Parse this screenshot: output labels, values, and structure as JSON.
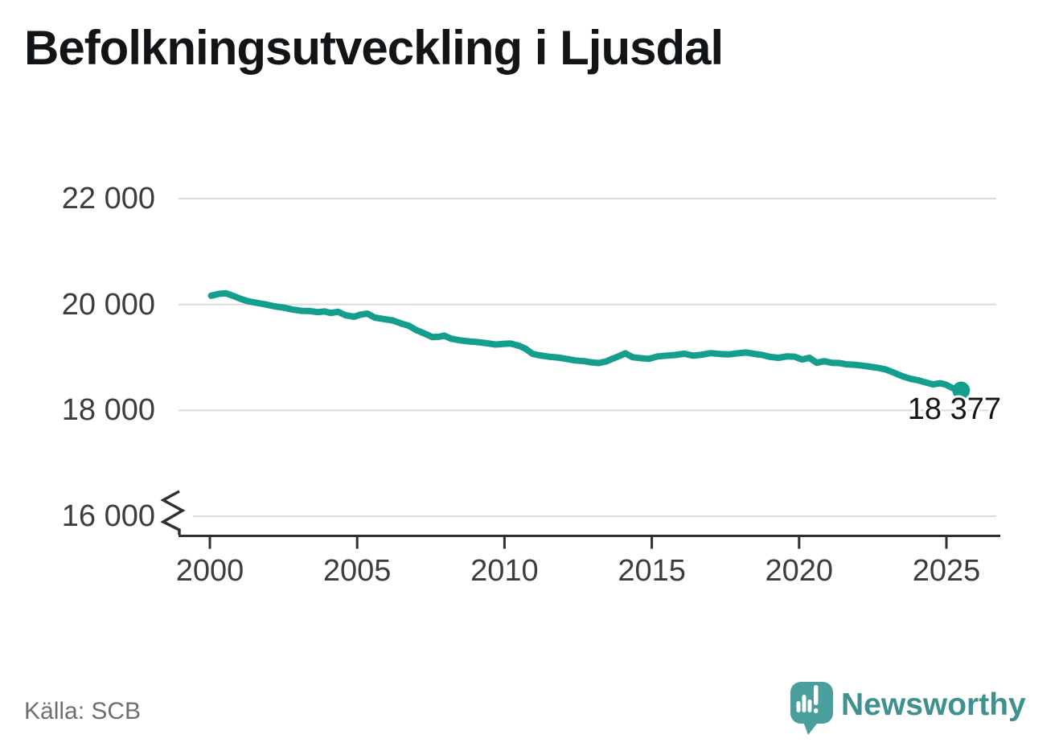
{
  "title": "Befolkningsutveckling i Ljusdal",
  "source": "Källa: SCB",
  "branding": {
    "name": "Newsworthy",
    "logo_icon": "speech-bubble-bar-chart-icon"
  },
  "colors": {
    "line": "#149E8D",
    "grid": "#DBDBDB",
    "axis": "#303030",
    "tick_text": "#3D3D3D",
    "title_text": "#121517",
    "source_text": "#6F6F6F",
    "end_label_text": "#161616",
    "logo_teal": "#4A9E9B",
    "wordmark_teal": "#3E918F"
  },
  "chart_data": {
    "type": "line",
    "title": "Befolkningsutveckling i Ljusdal",
    "xlabel": "",
    "ylabel": "",
    "grid": true,
    "legend": false,
    "y_axis_break": true,
    "ylim": [
      16000,
      22000
    ],
    "x_range": [
      2000,
      2025.5
    ],
    "end_label": "18 377",
    "end_value": 18377,
    "x_ticks": [
      {
        "value": 2000,
        "label": "2000"
      },
      {
        "value": 2005,
        "label": "2005"
      },
      {
        "value": 2010,
        "label": "2010"
      },
      {
        "value": 2015,
        "label": "2015"
      },
      {
        "value": 2020,
        "label": "2020"
      },
      {
        "value": 2025,
        "label": "2025"
      }
    ],
    "y_ticks": [
      {
        "value": 22000,
        "label": "22 000"
      },
      {
        "value": 20000,
        "label": "20 000"
      },
      {
        "value": 18000,
        "label": "18 000"
      },
      {
        "value": 16000,
        "label": "16 000"
      }
    ],
    "points": [
      [
        2000.04,
        20165
      ],
      [
        2000.3,
        20200
      ],
      [
        2000.55,
        20210
      ],
      [
        2000.8,
        20160
      ],
      [
        2001.05,
        20105
      ],
      [
        2001.3,
        20060
      ],
      [
        2001.6,
        20030
      ],
      [
        2001.9,
        20000
      ],
      [
        2002.2,
        19965
      ],
      [
        2002.5,
        19940
      ],
      [
        2002.8,
        19905
      ],
      [
        2003.1,
        19880
      ],
      [
        2003.4,
        19875
      ],
      [
        2003.65,
        19855
      ],
      [
        2003.9,
        19868
      ],
      [
        2004.1,
        19838
      ],
      [
        2004.35,
        19862
      ],
      [
        2004.6,
        19798
      ],
      [
        2004.9,
        19768
      ],
      [
        2005.1,
        19806
      ],
      [
        2005.35,
        19826
      ],
      [
        2005.6,
        19752
      ],
      [
        2005.9,
        19724
      ],
      [
        2006.2,
        19698
      ],
      [
        2006.5,
        19640
      ],
      [
        2006.75,
        19598
      ],
      [
        2007.0,
        19518
      ],
      [
        2007.3,
        19448
      ],
      [
        2007.55,
        19383
      ],
      [
        2007.8,
        19392
      ],
      [
        2007.95,
        19412
      ],
      [
        2008.2,
        19352
      ],
      [
        2008.5,
        19322
      ],
      [
        2008.8,
        19302
      ],
      [
        2009.1,
        19288
      ],
      [
        2009.4,
        19268
      ],
      [
        2009.7,
        19243
      ],
      [
        2009.95,
        19253
      ],
      [
        2010.2,
        19263
      ],
      [
        2010.5,
        19218
      ],
      [
        2010.7,
        19168
      ],
      [
        2010.95,
        19068
      ],
      [
        2011.2,
        19038
      ],
      [
        2011.5,
        19013
      ],
      [
        2011.8,
        18998
      ],
      [
        2012.1,
        18973
      ],
      [
        2012.4,
        18943
      ],
      [
        2012.7,
        18928
      ],
      [
        2013.0,
        18903
      ],
      [
        2013.2,
        18893
      ],
      [
        2013.45,
        18923
      ],
      [
        2013.7,
        18983
      ],
      [
        2013.95,
        19038
      ],
      [
        2014.1,
        19078
      ],
      [
        2014.35,
        19003
      ],
      [
        2014.6,
        18988
      ],
      [
        2014.9,
        18973
      ],
      [
        2015.2,
        19018
      ],
      [
        2015.5,
        19033
      ],
      [
        2015.8,
        19046
      ],
      [
        2016.1,
        19070
      ],
      [
        2016.4,
        19033
      ],
      [
        2016.7,
        19050
      ],
      [
        2017.0,
        19080
      ],
      [
        2017.3,
        19066
      ],
      [
        2017.6,
        19056
      ],
      [
        2017.9,
        19076
      ],
      [
        2018.2,
        19093
      ],
      [
        2018.5,
        19066
      ],
      [
        2018.75,
        19046
      ],
      [
        2019.0,
        19010
      ],
      [
        2019.3,
        18993
      ],
      [
        2019.6,
        19020
      ],
      [
        2019.85,
        19013
      ],
      [
        2020.1,
        18960
      ],
      [
        2020.35,
        18993
      ],
      [
        2020.6,
        18898
      ],
      [
        2020.85,
        18928
      ],
      [
        2021.1,
        18898
      ],
      [
        2021.35,
        18893
      ],
      [
        2021.6,
        18870
      ],
      [
        2021.9,
        18860
      ],
      [
        2022.15,
        18843
      ],
      [
        2022.4,
        18826
      ],
      [
        2022.7,
        18800
      ],
      [
        2022.95,
        18770
      ],
      [
        2023.2,
        18716
      ],
      [
        2023.5,
        18646
      ],
      [
        2023.8,
        18593
      ],
      [
        2024.05,
        18566
      ],
      [
        2024.3,
        18526
      ],
      [
        2024.55,
        18490
      ],
      [
        2024.8,
        18513
      ],
      [
        2025.0,
        18480
      ],
      [
        2025.2,
        18423
      ],
      [
        2025.4,
        18385
      ],
      [
        2025.5,
        18377
      ]
    ]
  }
}
